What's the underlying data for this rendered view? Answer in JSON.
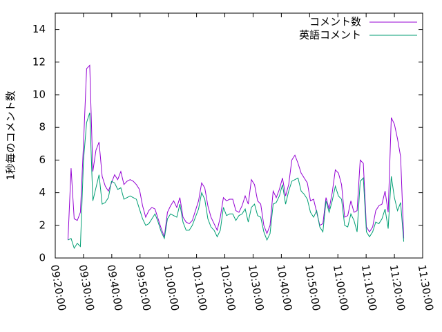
{
  "chart_data": {
    "type": "line",
    "y_label": "1秒毎のコメント数",
    "x": [
      "09:24:30",
      "09:25:36",
      "09:26:42",
      "09:27:48",
      "09:28:54",
      "09:30:00",
      "09:31:06",
      "09:32:12",
      "09:33:18",
      "09:34:24",
      "09:35:30",
      "09:36:36",
      "09:37:42",
      "09:38:48",
      "09:39:54",
      "09:41:00",
      "09:42:06",
      "09:43:12",
      "09:44:18",
      "09:45:24",
      "09:46:30",
      "09:47:36",
      "09:48:42",
      "09:49:48",
      "09:50:54",
      "09:52:00",
      "09:53:06",
      "09:54:12",
      "09:55:18",
      "09:56:24",
      "09:57:30",
      "09:58:36",
      "09:59:42",
      "10:00:48",
      "10:01:54",
      "10:03:00",
      "10:04:06",
      "10:05:12",
      "10:06:18",
      "10:07:24",
      "10:08:30",
      "10:09:36",
      "10:10:42",
      "10:11:48",
      "10:12:54",
      "10:14:00",
      "10:15:06",
      "10:16:12",
      "10:17:18",
      "10:18:24",
      "10:19:30",
      "10:20:36",
      "10:21:42",
      "10:22:48",
      "10:23:54",
      "10:25:00",
      "10:26:06",
      "10:27:12",
      "10:28:18",
      "10:29:24",
      "10:30:30",
      "10:31:36",
      "10:32:42",
      "10:33:48",
      "10:34:54",
      "10:36:00",
      "10:37:06",
      "10:38:12",
      "10:39:18",
      "10:40:24",
      "10:41:30",
      "10:42:36",
      "10:43:42",
      "10:44:48",
      "10:45:54",
      "10:47:00",
      "10:48:06",
      "10:49:12",
      "10:50:18",
      "10:51:24",
      "10:52:30",
      "10:53:36",
      "10:54:42",
      "10:55:48",
      "10:56:54",
      "10:58:00",
      "10:59:06",
      "11:00:12",
      "11:01:18",
      "11:02:24",
      "11:03:30",
      "11:04:36",
      "11:05:42",
      "11:06:48",
      "11:07:54",
      "11:09:00",
      "11:10:06",
      "11:11:12",
      "11:12:18",
      "11:13:24",
      "11:14:30",
      "11:15:36",
      "11:16:42",
      "11:17:48",
      "11:18:54",
      "11:20:00",
      "11:21:06",
      "11:22:12",
      "11:23:18"
    ],
    "series": [
      {
        "name": "コメント数",
        "color": "#9400d3",
        "values": [
          1.1,
          5.5,
          2.4,
          2.3,
          2.8,
          7.0,
          11.6,
          11.8,
          5.3,
          6.6,
          7.1,
          5.0,
          4.4,
          4.1,
          4.6,
          5.1,
          4.8,
          5.3,
          4.5,
          4.7,
          4.8,
          4.7,
          4.5,
          4.2,
          3.2,
          2.5,
          2.9,
          3.1,
          3.0,
          2.4,
          1.8,
          1.3,
          2.8,
          3.2,
          3.5,
          3.1,
          3.7,
          2.5,
          2.2,
          2.1,
          2.3,
          2.9,
          3.5,
          4.6,
          4.3,
          3.2,
          2.5,
          2.1,
          1.7,
          2.5,
          3.7,
          3.5,
          3.6,
          3.6,
          2.9,
          2.8,
          3.2,
          3.8,
          3.3,
          4.8,
          4.5,
          3.5,
          3.3,
          2.0,
          1.5,
          2.0,
          4.1,
          3.7,
          4.2,
          4.9,
          3.8,
          4.5,
          6.0,
          6.3,
          5.8,
          5.2,
          4.9,
          4.6,
          3.5,
          3.6,
          2.8,
          2.0,
          2.1,
          3.7,
          3.0,
          4.0,
          5.4,
          5.2,
          4.5,
          2.5,
          2.6,
          3.5,
          2.8,
          2.9,
          6.0,
          5.8,
          1.9,
          1.6,
          1.9,
          2.9,
          3.2,
          3.3,
          4.1,
          2.8,
          8.6,
          8.2,
          7.3,
          6.2,
          1.2
        ]
      },
      {
        "name": "英語コメント",
        "color": "#009e73",
        "values": [
          1.1,
          1.2,
          0.6,
          0.9,
          0.7,
          6.0,
          8.3,
          8.9,
          3.5,
          4.3,
          5.1,
          3.3,
          3.4,
          3.7,
          4.7,
          4.6,
          4.2,
          4.3,
          3.6,
          3.7,
          3.8,
          3.7,
          3.6,
          3.0,
          2.4,
          2.0,
          2.1,
          2.4,
          2.7,
          2.2,
          1.6,
          1.2,
          2.4,
          2.7,
          2.6,
          2.5,
          3.3,
          2.2,
          1.7,
          1.7,
          2.0,
          2.5,
          3.0,
          4.0,
          3.6,
          2.4,
          1.9,
          1.7,
          1.3,
          1.7,
          3.1,
          2.6,
          2.7,
          2.7,
          2.3,
          2.6,
          2.7,
          3.0,
          2.2,
          3.1,
          3.3,
          2.6,
          2.5,
          1.6,
          1.1,
          1.5,
          3.3,
          3.4,
          3.8,
          4.5,
          3.3,
          4.1,
          4.7,
          4.8,
          4.9,
          4.1,
          3.9,
          3.6,
          2.8,
          2.5,
          2.9,
          1.9,
          1.6,
          3.5,
          2.8,
          3.5,
          4.4,
          3.8,
          3.6,
          2.0,
          1.9,
          2.7,
          2.3,
          1.6,
          4.7,
          4.9,
          1.6,
          1.3,
          1.6,
          2.2,
          2.1,
          2.4,
          3.0,
          1.8,
          5.0,
          3.7,
          2.9,
          3.4,
          1.0
        ]
      }
    ],
    "xlim": [
      "09:20:00",
      "11:30:00"
    ],
    "xticks": [
      "09:20:00",
      "09:30:00",
      "09:40:00",
      "09:50:00",
      "10:00:00",
      "10:10:00",
      "10:20:00",
      "10:30:00",
      "10:40:00",
      "10:50:00",
      "11:00:00",
      "11:10:00",
      "11:20:00",
      "11:30:00"
    ],
    "ylim": [
      0,
      15
    ],
    "yticks": [
      0,
      2,
      4,
      6,
      8,
      10,
      12,
      14
    ],
    "legend": "top-right"
  }
}
